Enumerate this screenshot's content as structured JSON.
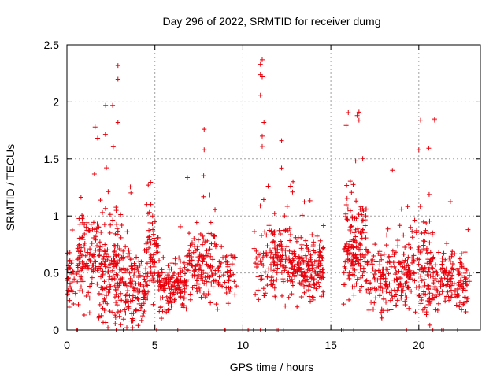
{
  "chart_data": {
    "type": "scatter",
    "title": "Day 296 of 2022, SRMTID for receiver dumg",
    "xlabel": "GPS time / hours",
    "ylabel": "SRMTID / TECUs",
    "xlim": [
      0,
      23.5
    ],
    "ylim": [
      0,
      2.5
    ],
    "grid": true,
    "x_ticks": [
      0,
      5,
      10,
      15,
      20
    ],
    "x_tick_labels": [
      "0",
      "5",
      "10",
      "15",
      "20"
    ],
    "y_ticks": [
      0,
      0.5,
      1,
      1.5,
      2,
      2.5
    ],
    "y_tick_labels": [
      "0",
      "0.5",
      "1",
      "1.5",
      "2",
      "2.5"
    ],
    "marker": "+",
    "color": "#e8000b",
    "series": [
      {
        "name": "SRMTID",
        "notable_points": [
          {
            "x": 2.9,
            "y": 2.32
          },
          {
            "x": 2.9,
            "y": 2.2
          },
          {
            "x": 2.2,
            "y": 1.97
          },
          {
            "x": 2.6,
            "y": 1.97
          },
          {
            "x": 2.9,
            "y": 1.82
          },
          {
            "x": 1.6,
            "y": 1.78
          },
          {
            "x": 7.8,
            "y": 1.76
          },
          {
            "x": 7.8,
            "y": 1.58
          },
          {
            "x": 11.1,
            "y": 2.37
          },
          {
            "x": 11.0,
            "y": 2.33
          },
          {
            "x": 11.0,
            "y": 2.24
          },
          {
            "x": 11.1,
            "y": 2.22
          },
          {
            "x": 11.0,
            "y": 2.06
          },
          {
            "x": 11.2,
            "y": 1.82
          },
          {
            "x": 11.1,
            "y": 1.7
          },
          {
            "x": 11.1,
            "y": 1.61
          },
          {
            "x": 12.2,
            "y": 1.66
          },
          {
            "x": 12.2,
            "y": 1.42
          },
          {
            "x": 16.6,
            "y": 1.91
          },
          {
            "x": 16.5,
            "y": 1.88
          },
          {
            "x": 16.6,
            "y": 1.84
          },
          {
            "x": 20.1,
            "y": 1.84
          },
          {
            "x": 20.9,
            "y": 1.85
          },
          {
            "x": 20.9,
            "y": 1.84
          },
          {
            "x": 20.0,
            "y": 1.58
          },
          {
            "x": 22.8,
            "y": 0.88
          },
          {
            "x": 18.5,
            "y": 1.4
          }
        ],
        "density_profile": [
          {
            "x0": 0.0,
            "x1": 0.6,
            "center": 0.45,
            "spread": 0.22,
            "count": 35
          },
          {
            "x0": 0.6,
            "x1": 1.8,
            "center": 0.65,
            "spread": 0.35,
            "count": 110
          },
          {
            "x0": 1.8,
            "x1": 3.2,
            "center": 0.55,
            "spread": 0.45,
            "count": 160
          },
          {
            "x0": 3.2,
            "x1": 4.5,
            "center": 0.35,
            "spread": 0.3,
            "count": 120
          },
          {
            "x0": 4.5,
            "x1": 5.2,
            "center": 0.65,
            "spread": 0.35,
            "count": 70
          },
          {
            "x0": 5.2,
            "x1": 6.8,
            "center": 0.38,
            "spread": 0.18,
            "count": 140
          },
          {
            "x0": 6.8,
            "x1": 8.7,
            "center": 0.55,
            "spread": 0.28,
            "count": 150
          },
          {
            "x0": 8.7,
            "x1": 9.7,
            "center": 0.45,
            "spread": 0.2,
            "count": 40
          },
          {
            "x0": 10.6,
            "x1": 11.5,
            "center": 0.55,
            "spread": 0.25,
            "count": 45
          },
          {
            "x0": 11.5,
            "x1": 13.5,
            "center": 0.6,
            "spread": 0.28,
            "count": 170
          },
          {
            "x0": 13.5,
            "x1": 14.6,
            "center": 0.55,
            "spread": 0.25,
            "count": 110
          },
          {
            "x0": 15.7,
            "x1": 17.0,
            "center": 0.75,
            "spread": 0.4,
            "count": 140
          },
          {
            "x0": 17.0,
            "x1": 19.5,
            "center": 0.45,
            "spread": 0.28,
            "count": 190
          },
          {
            "x0": 19.5,
            "x1": 20.8,
            "center": 0.55,
            "spread": 0.35,
            "count": 110
          },
          {
            "x0": 20.8,
            "x1": 22.0,
            "center": 0.45,
            "spread": 0.25,
            "count": 90
          },
          {
            "x0": 22.0,
            "x1": 22.9,
            "center": 0.4,
            "spread": 0.2,
            "count": 60
          }
        ],
        "zero_points_x": [
          0.55,
          0.6,
          2.8,
          3.2,
          3.7,
          5.1,
          6.3,
          8.95,
          9.0,
          10.0,
          10.3,
          10.4,
          10.6,
          11.0,
          11.3,
          11.9,
          12.0,
          12.3,
          15.6,
          15.7,
          16.3,
          19.3,
          20.8,
          21.3,
          21.4,
          22.2
        ]
      }
    ]
  }
}
